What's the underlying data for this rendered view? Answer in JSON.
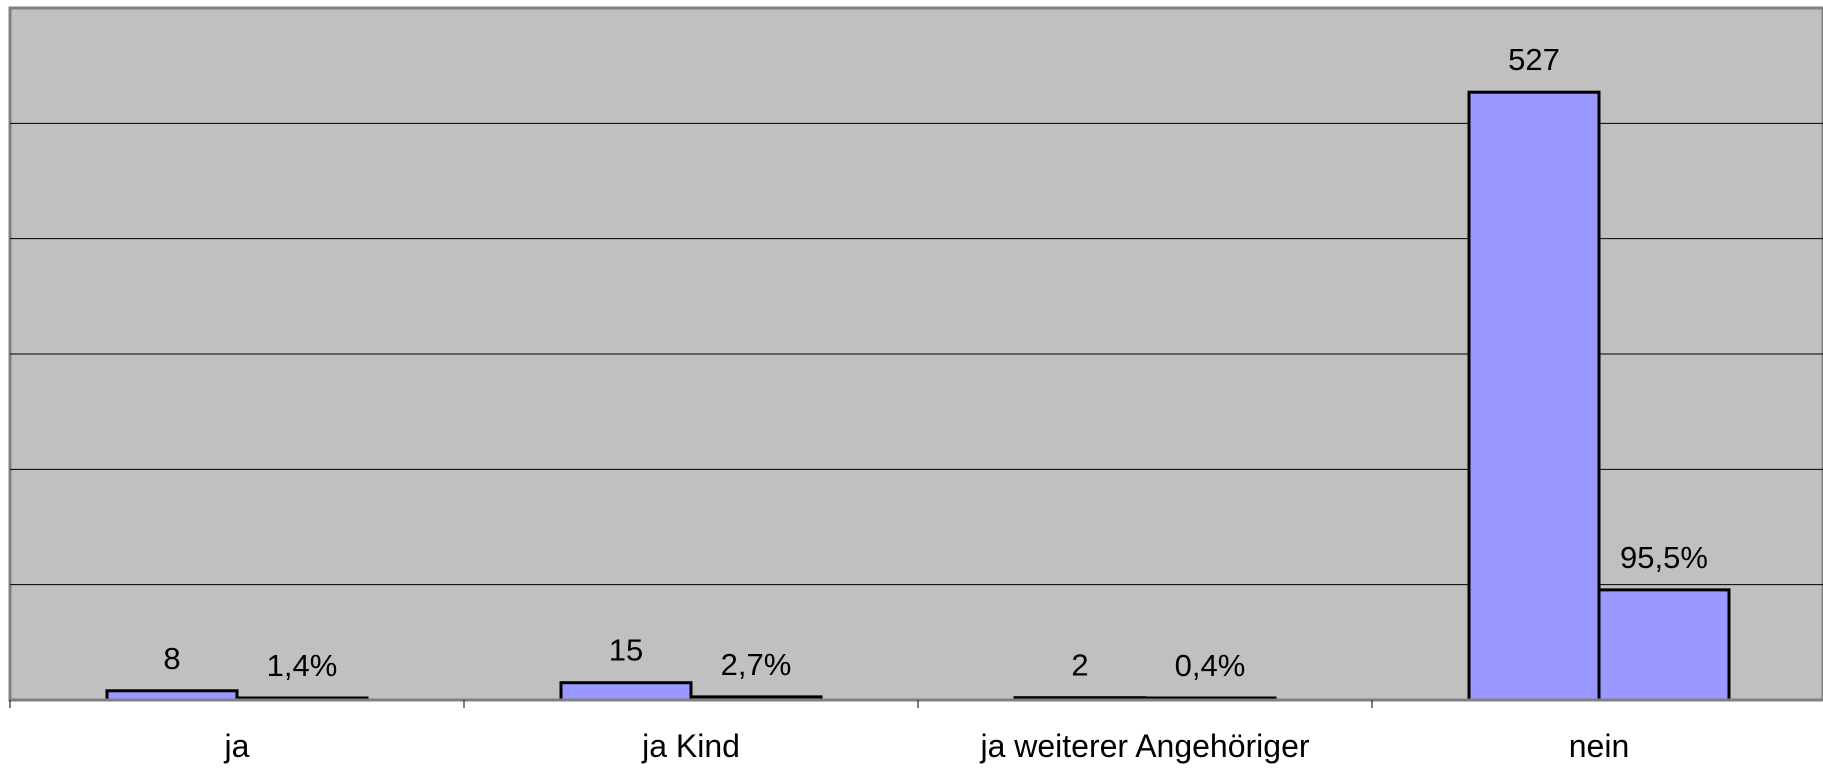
{
  "chart_data": {
    "type": "bar",
    "categories": [
      "ja",
      "ja Kind",
      "ja weiterer Angehöriger",
      "nein"
    ],
    "series": [
      {
        "values": [
          8,
          15,
          2,
          527
        ],
        "data_labels": [
          "8",
          "15",
          "2",
          "527"
        ],
        "color": "#9999ff"
      },
      {
        "values": [
          1.4,
          2.7,
          0.4,
          95.5
        ],
        "data_labels": [
          "1,4%",
          "2,7%",
          "0,4%",
          "95,5%"
        ],
        "color": "#9999ff"
      }
    ],
    "ylim": [
      0,
      600
    ],
    "grid": true,
    "legend": "none",
    "colors": {
      "plot_background": "#c0c0c0",
      "bar_fill": "#9999ff",
      "bar_stroke": "#000000",
      "gridline": "#000000"
    }
  }
}
